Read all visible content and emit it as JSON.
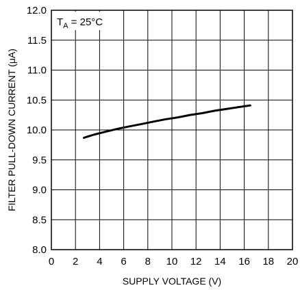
{
  "chart_data": {
    "type": "line",
    "title": "",
    "xlabel": "SUPPLY VOLTAGE (V)",
    "ylabel": "FILTER PULL-DOWN CURRENT (μA)",
    "xlim": [
      0,
      20
    ],
    "ylim": [
      8.0,
      12.0
    ],
    "xticks": [
      "0",
      "2",
      "4",
      "6",
      "8",
      "10",
      "12",
      "14",
      "16",
      "18",
      "20"
    ],
    "yticks": [
      "8.0",
      "8.5",
      "9.0",
      "9.5",
      "10.0",
      "10.5",
      "11.0",
      "11.5",
      "12.0"
    ],
    "grid": true,
    "annotation": {
      "prefix": "T",
      "subscript": "A",
      "suffix": " = 25°C"
    },
    "series": [
      {
        "x": [
          2.7,
          3.5,
          4.5,
          5.5,
          6.5,
          7.5,
          8.5,
          9.5,
          10.5,
          11.5,
          12.5,
          13.5,
          14.5,
          15.5,
          16.5
        ],
        "y": [
          9.87,
          9.92,
          9.97,
          10.02,
          10.06,
          10.1,
          10.14,
          10.18,
          10.21,
          10.25,
          10.28,
          10.32,
          10.35,
          10.38,
          10.41
        ]
      }
    ]
  }
}
